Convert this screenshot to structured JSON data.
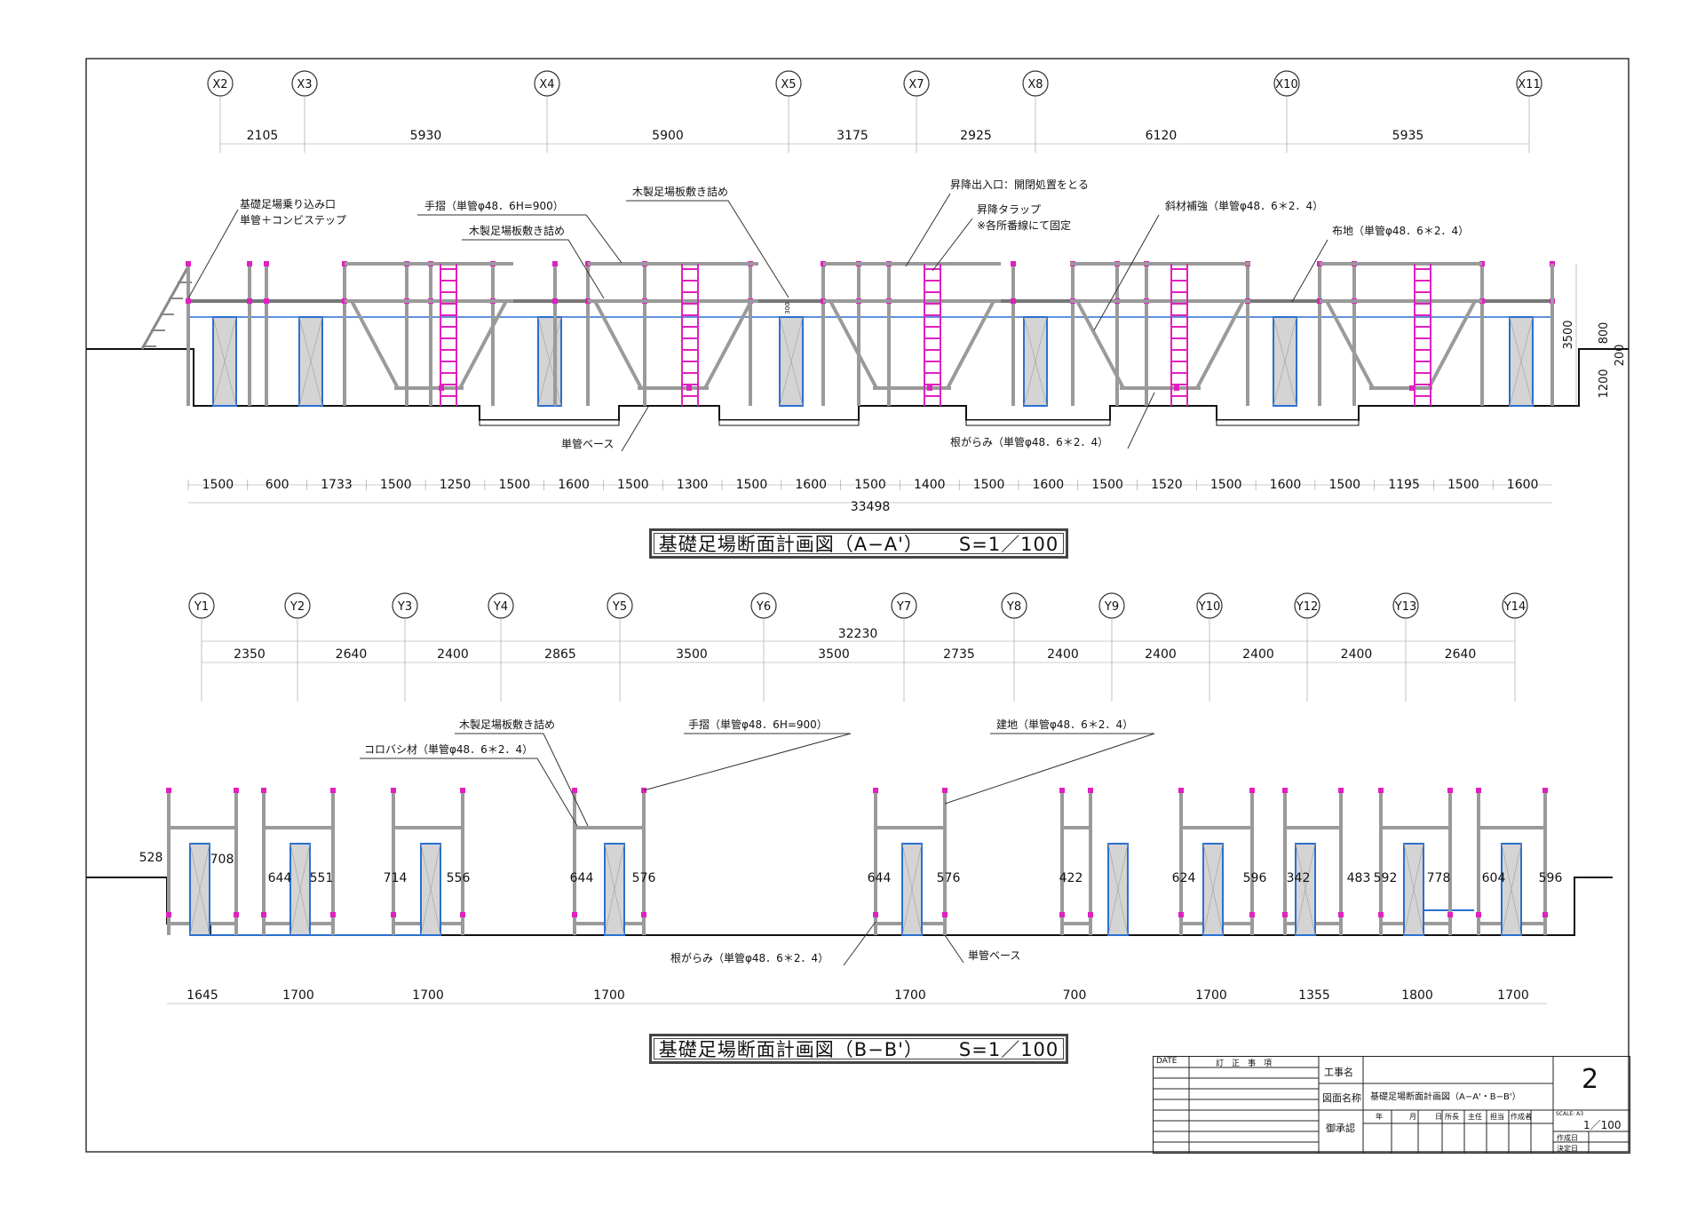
{
  "section_a": {
    "title": "基礎足場断面計画図（A−A'）",
    "scale": "S=1／100",
    "grid_labels": [
      "X2",
      "X3",
      "X4",
      "X5",
      "X7",
      "X8",
      "X10",
      "X11"
    ],
    "grid_spacings": [
      "2105",
      "5930",
      "5900",
      "3175",
      "2925",
      "6120",
      "5935"
    ],
    "bottom_dims": [
      "1500",
      "600",
      "1733",
      "1500",
      "1250",
      "1500",
      "1600",
      "1500",
      "1300",
      "1500",
      "1600",
      "1500",
      "1400",
      "1500",
      "1600",
      "1500",
      "1520",
      "1500",
      "1600",
      "1500",
      "1195",
      "1500",
      "1600"
    ],
    "total": "33498",
    "side_dims": [
      "3500",
      "800",
      "200",
      "1200"
    ],
    "tag_300": "300",
    "notes": {
      "entry": "基礎足場乗り込み口",
      "entry2": "単管＋コンビステップ",
      "handrail": "手摺（単管φ48．6H=900）",
      "board1": "木製足場板敷き詰め",
      "board2": "木製足場板敷き詰め",
      "exit": "昇降出入口：開閉処置をとる",
      "ladder": "昇降タラップ",
      "ladder2": "※各所番線にて固定",
      "diag": "斜材補強（単管φ48．6＊2．4）",
      "runner": "布地（単管φ48．6＊2．4）",
      "base": "単管ベース",
      "sweep": "根がらみ（単管φ48．6＊2．4）"
    }
  },
  "section_b": {
    "title": "基礎足場断面計画図（B−B'）",
    "scale": "S=1／100",
    "grid_labels": [
      "Y1",
      "Y2",
      "Y3",
      "Y4",
      "Y5",
      "Y6",
      "Y7",
      "Y8",
      "Y9",
      "Y10",
      "Y12",
      "Y13",
      "Y14"
    ],
    "grid_spacings": [
      "2350",
      "2640",
      "2400",
      "2865",
      "3500",
      "3500",
      "2735",
      "2400",
      "2400",
      "2400",
      "2400",
      "2640"
    ],
    "total": "32230",
    "bottom_dims": [
      "1645",
      "1700",
      "1700",
      "1700",
      "1700",
      "700",
      "1700",
      "1355",
      "1800",
      "1700"
    ],
    "side_dims": [
      "528",
      "708",
      "644",
      "551",
      "714",
      "556",
      "644",
      "576",
      "644",
      "576",
      "422",
      "624",
      "596",
      "342",
      "483",
      "592",
      "778",
      "604",
      "596"
    ],
    "notes": {
      "board": "木製足場板敷き詰め",
      "korobashi": "コロバシ材（単管φ48．6＊2．4）",
      "handrail": "手摺（単管φ48．6H=900）",
      "runner": "建地（単管φ48．6＊2．4）",
      "sweep": "根がらみ（単管φ48．6＊2．4）",
      "base": "単管ベース"
    }
  },
  "title_block": {
    "date": "DATE",
    "revision": "訂　正　事　項",
    "project_label": "工事名",
    "drawing_label": "図面名称",
    "drawing_name": "基礎足場断面計画図（A−A'・B−B'）",
    "approval": "御承認",
    "sheet_no": "2",
    "scale_label": "SCALE: A3",
    "scale": "1／100",
    "cols": [
      "年",
      "月",
      "日",
      "所長",
      "主任",
      "担当",
      "作成者"
    ],
    "created": "作成日",
    "decided": "決定日"
  },
  "colors": {
    "pipe": "#c0c0c0",
    "pink": "#e020c0",
    "blue": "#2a6fd0",
    "concrete": "#d4d4d4",
    "line": "#111111"
  }
}
